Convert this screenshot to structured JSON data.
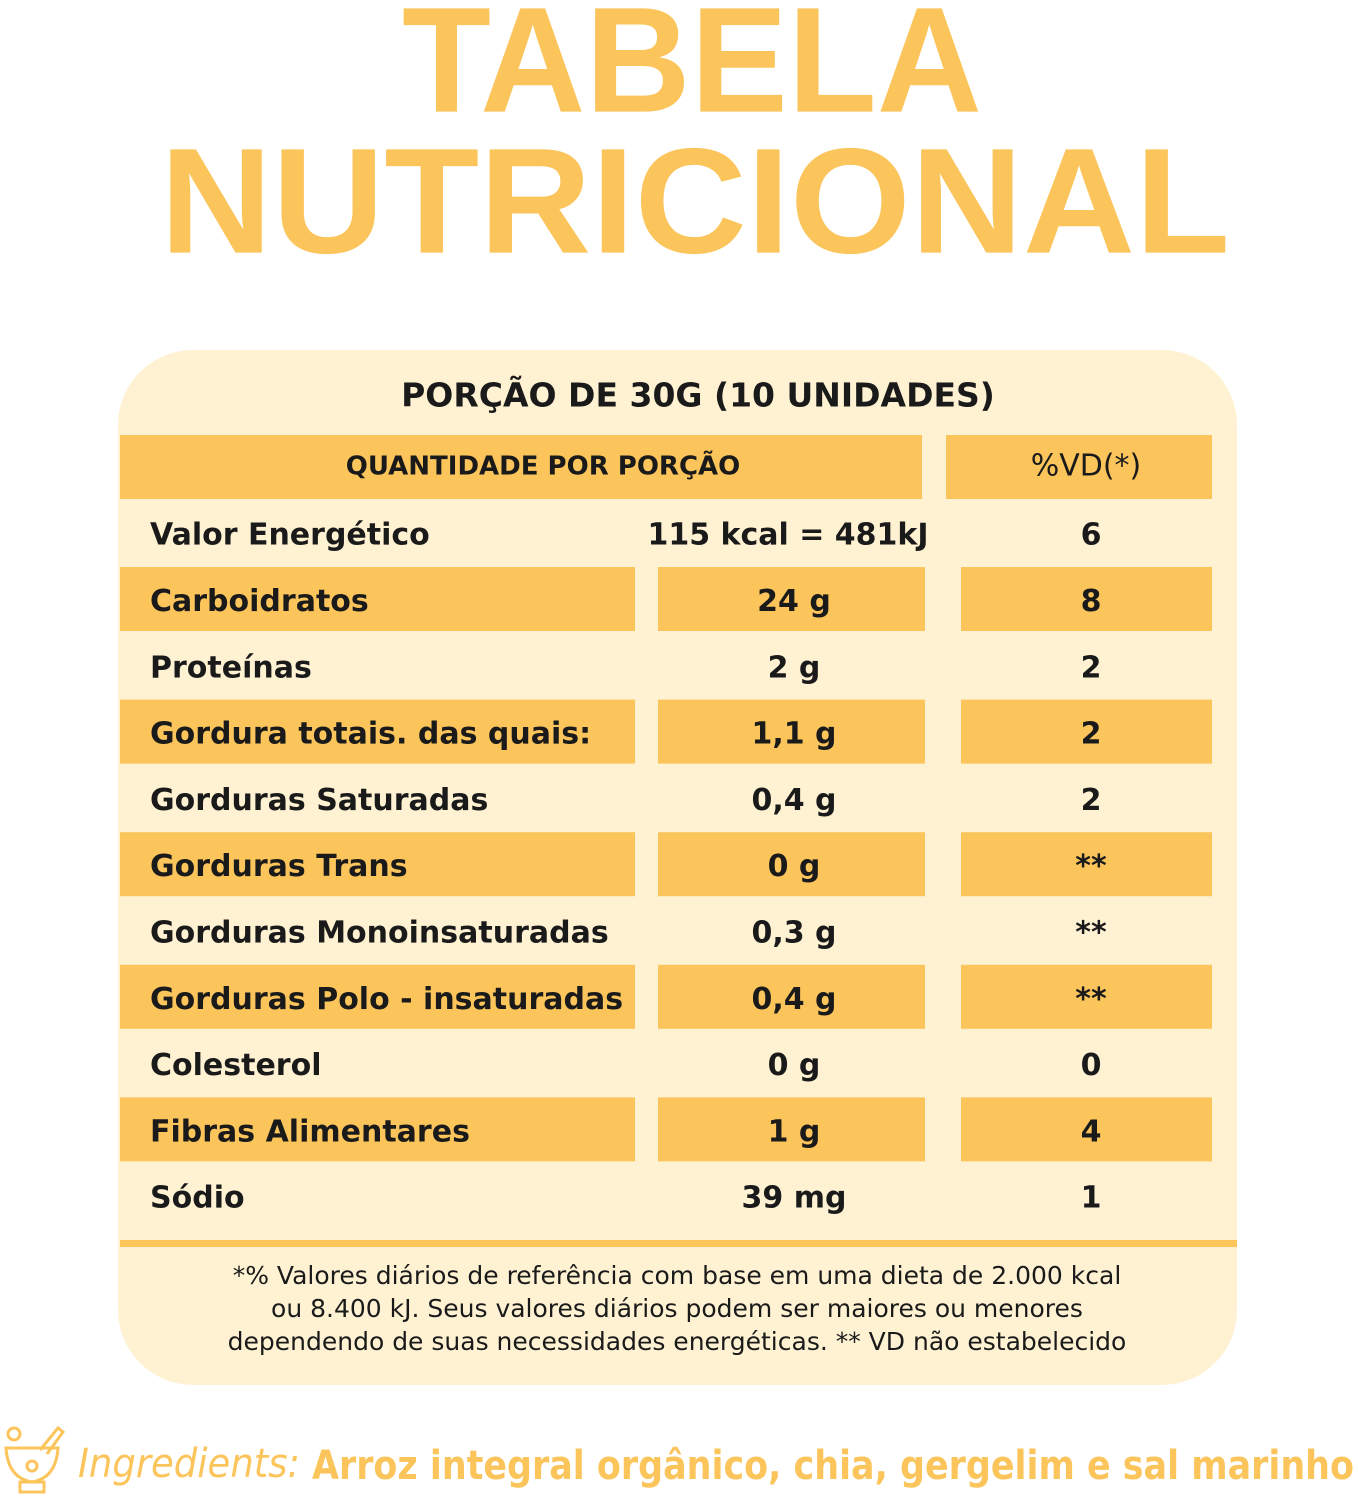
{
  "title": {
    "lines": [
      "TABELA",
      "NUTRICIONAL"
    ]
  },
  "table": {
    "portion": "PORÇÃO DE 30G (10 UNIDADES)",
    "header": [
      "QUANTIDADE POR PORÇÃO",
      "%VD(*)"
    ],
    "rows": [
      [
        "Valor Energético",
        "115 kcal = 481kJ",
        "6"
      ],
      [
        "Carboidratos",
        "24 g",
        "8"
      ],
      [
        "Proteínas",
        "2 g",
        "2"
      ],
      [
        "Gordura totais. das quais:",
        "1,1 g",
        "2"
      ],
      [
        "Gorduras Saturadas",
        "0,4 g",
        "2"
      ],
      [
        "Gorduras Trans",
        "0 g",
        "**"
      ],
      [
        "Gorduras Monoinsaturadas",
        "0,3 g",
        "**"
      ],
      [
        "Gorduras Polo - insaturadas",
        "0,4 g",
        "**"
      ],
      [
        "Colesterol",
        "0 g",
        "0"
      ],
      [
        "Fibras Alimentares",
        "1 g",
        "4"
      ],
      [
        "Sódio",
        "39 mg",
        "1"
      ]
    ]
  },
  "footnote": {
    "lines": [
      "*% Valores diários de referência com base em uma dieta de 2.000 kcal",
      "ou 8.400 kJ. Seus valores diários podem ser maiores ou menores",
      "dependendo de suas necessidades energéticas. ** VD não estabelecido"
    ]
  },
  "ingredients": {
    "label": "Ingredients:",
    "text": "Arroz integral orgânico, chia, gergelim e sal marinho"
  }
}
